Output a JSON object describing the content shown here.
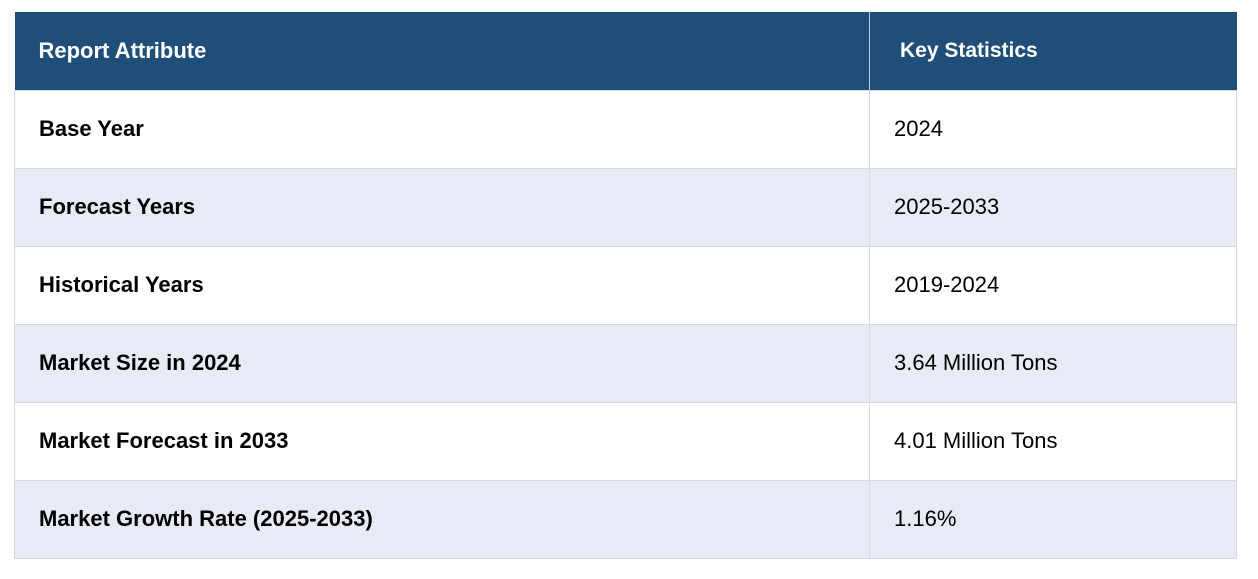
{
  "table": {
    "headers": {
      "attribute": "Report Attribute",
      "statistics": "Key Statistics"
    },
    "rows": [
      {
        "attribute": "Base Year",
        "value": "2024"
      },
      {
        "attribute": "Forecast Years",
        "value": "2025-2033"
      },
      {
        "attribute": "Historical Years",
        "value": "2019-2024"
      },
      {
        "attribute": "Market Size in 2024",
        "value": "3.64 Million Tons"
      },
      {
        "attribute": "Market Forecast in 2033",
        "value": "4.01 Million Tons"
      },
      {
        "attribute": "Market Growth Rate (2025-2033)",
        "value": "1.16%"
      }
    ]
  },
  "colors": {
    "header_background": "#1f4e79",
    "row_alt_background": "#e8eaf5",
    "row_background": "#ffffff"
  }
}
